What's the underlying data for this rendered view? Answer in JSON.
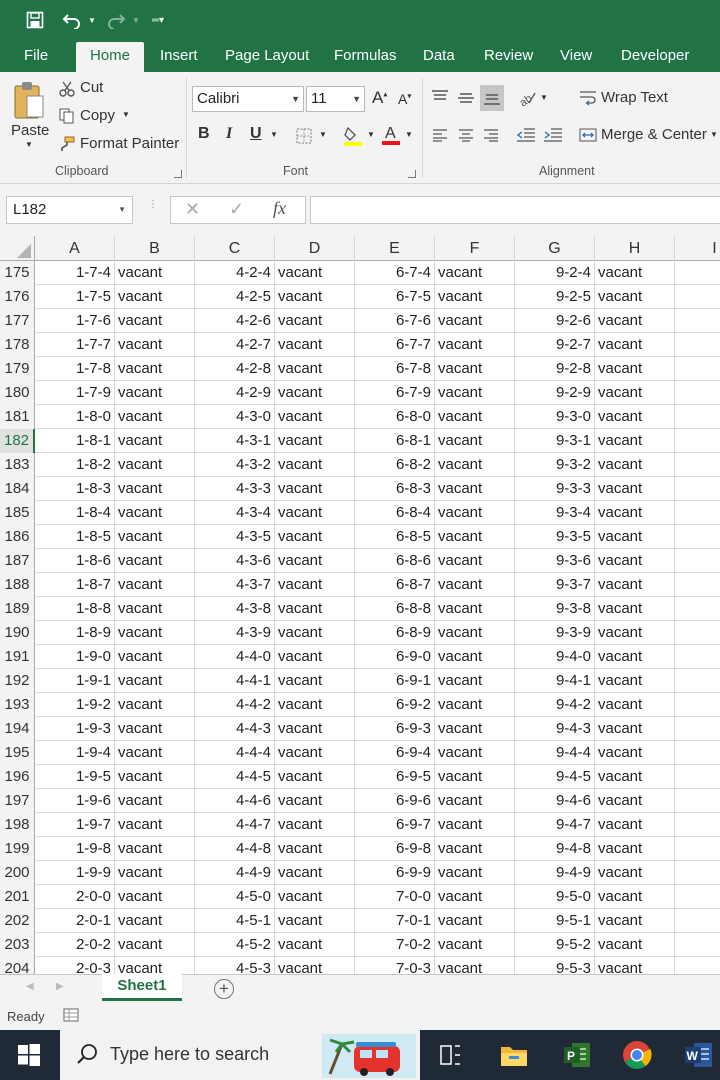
{
  "tabs": [
    "File",
    "Home",
    "Insert",
    "Page Layout",
    "Formulas",
    "Data",
    "Review",
    "View",
    "Developer"
  ],
  "active_tab": "Home",
  "ribbon": {
    "clipboard": {
      "paste": "Paste",
      "cut": "Cut",
      "copy": "Copy",
      "format_painter": "Format Painter",
      "label": "Clipboard"
    },
    "font": {
      "name": "Calibri",
      "size": "11",
      "bold": "B",
      "italic": "I",
      "underline": "U",
      "label": "Font"
    },
    "alignment": {
      "wrap_text": "Wrap Text",
      "merge_center": "Merge & Center",
      "label": "Alignment"
    }
  },
  "formula_bar": {
    "name_box": "L182",
    "fx": "fx",
    "value": ""
  },
  "columns": [
    "A",
    "B",
    "C",
    "D",
    "E",
    "F",
    "G",
    "H",
    "I"
  ],
  "selected_row": "182",
  "rows": [
    {
      "n": "175",
      "a": "1-7-4",
      "b": "vacant",
      "c": "4-2-4",
      "d": "vacant",
      "e": "6-7-4",
      "f": "vacant",
      "g": "9-2-4",
      "h": "vacant"
    },
    {
      "n": "176",
      "a": "1-7-5",
      "b": "vacant",
      "c": "4-2-5",
      "d": "vacant",
      "e": "6-7-5",
      "f": "vacant",
      "g": "9-2-5",
      "h": "vacant"
    },
    {
      "n": "177",
      "a": "1-7-6",
      "b": "vacant",
      "c": "4-2-6",
      "d": "vacant",
      "e": "6-7-6",
      "f": "vacant",
      "g": "9-2-6",
      "h": "vacant"
    },
    {
      "n": "178",
      "a": "1-7-7",
      "b": "vacant",
      "c": "4-2-7",
      "d": "vacant",
      "e": "6-7-7",
      "f": "vacant",
      "g": "9-2-7",
      "h": "vacant"
    },
    {
      "n": "179",
      "a": "1-7-8",
      "b": "vacant",
      "c": "4-2-8",
      "d": "vacant",
      "e": "6-7-8",
      "f": "vacant",
      "g": "9-2-8",
      "h": "vacant"
    },
    {
      "n": "180",
      "a": "1-7-9",
      "b": "vacant",
      "c": "4-2-9",
      "d": "vacant",
      "e": "6-7-9",
      "f": "vacant",
      "g": "9-2-9",
      "h": "vacant"
    },
    {
      "n": "181",
      "a": "1-8-0",
      "b": "vacant",
      "c": "4-3-0",
      "d": "vacant",
      "e": "6-8-0",
      "f": "vacant",
      "g": "9-3-0",
      "h": "vacant"
    },
    {
      "n": "182",
      "a": "1-8-1",
      "b": "vacant",
      "c": "4-3-1",
      "d": "vacant",
      "e": "6-8-1",
      "f": "vacant",
      "g": "9-3-1",
      "h": "vacant"
    },
    {
      "n": "183",
      "a": "1-8-2",
      "b": "vacant",
      "c": "4-3-2",
      "d": "vacant",
      "e": "6-8-2",
      "f": "vacant",
      "g": "9-3-2",
      "h": "vacant"
    },
    {
      "n": "184",
      "a": "1-8-3",
      "b": "vacant",
      "c": "4-3-3",
      "d": "vacant",
      "e": "6-8-3",
      "f": "vacant",
      "g": "9-3-3",
      "h": "vacant"
    },
    {
      "n": "185",
      "a": "1-8-4",
      "b": "vacant",
      "c": "4-3-4",
      "d": "vacant",
      "e": "6-8-4",
      "f": "vacant",
      "g": "9-3-4",
      "h": "vacant"
    },
    {
      "n": "186",
      "a": "1-8-5",
      "b": "vacant",
      "c": "4-3-5",
      "d": "vacant",
      "e": "6-8-5",
      "f": "vacant",
      "g": "9-3-5",
      "h": "vacant"
    },
    {
      "n": "187",
      "a": "1-8-6",
      "b": "vacant",
      "c": "4-3-6",
      "d": "vacant",
      "e": "6-8-6",
      "f": "vacant",
      "g": "9-3-6",
      "h": "vacant"
    },
    {
      "n": "188",
      "a": "1-8-7",
      "b": "vacant",
      "c": "4-3-7",
      "d": "vacant",
      "e": "6-8-7",
      "f": "vacant",
      "g": "9-3-7",
      "h": "vacant"
    },
    {
      "n": "189",
      "a": "1-8-8",
      "b": "vacant",
      "c": "4-3-8",
      "d": "vacant",
      "e": "6-8-8",
      "f": "vacant",
      "g": "9-3-8",
      "h": "vacant"
    },
    {
      "n": "190",
      "a": "1-8-9",
      "b": "vacant",
      "c": "4-3-9",
      "d": "vacant",
      "e": "6-8-9",
      "f": "vacant",
      "g": "9-3-9",
      "h": "vacant"
    },
    {
      "n": "191",
      "a": "1-9-0",
      "b": "vacant",
      "c": "4-4-0",
      "d": "vacant",
      "e": "6-9-0",
      "f": "vacant",
      "g": "9-4-0",
      "h": "vacant"
    },
    {
      "n": "192",
      "a": "1-9-1",
      "b": "vacant",
      "c": "4-4-1",
      "d": "vacant",
      "e": "6-9-1",
      "f": "vacant",
      "g": "9-4-1",
      "h": "vacant"
    },
    {
      "n": "193",
      "a": "1-9-2",
      "b": "vacant",
      "c": "4-4-2",
      "d": "vacant",
      "e": "6-9-2",
      "f": "vacant",
      "g": "9-4-2",
      "h": "vacant"
    },
    {
      "n": "194",
      "a": "1-9-3",
      "b": "vacant",
      "c": "4-4-3",
      "d": "vacant",
      "e": "6-9-3",
      "f": "vacant",
      "g": "9-4-3",
      "h": "vacant"
    },
    {
      "n": "195",
      "a": "1-9-4",
      "b": "vacant",
      "c": "4-4-4",
      "d": "vacant",
      "e": "6-9-4",
      "f": "vacant",
      "g": "9-4-4",
      "h": "vacant"
    },
    {
      "n": "196",
      "a": "1-9-5",
      "b": "vacant",
      "c": "4-4-5",
      "d": "vacant",
      "e": "6-9-5",
      "f": "vacant",
      "g": "9-4-5",
      "h": "vacant"
    },
    {
      "n": "197",
      "a": "1-9-6",
      "b": "vacant",
      "c": "4-4-6",
      "d": "vacant",
      "e": "6-9-6",
      "f": "vacant",
      "g": "9-4-6",
      "h": "vacant"
    },
    {
      "n": "198",
      "a": "1-9-7",
      "b": "vacant",
      "c": "4-4-7",
      "d": "vacant",
      "e": "6-9-7",
      "f": "vacant",
      "g": "9-4-7",
      "h": "vacant"
    },
    {
      "n": "199",
      "a": "1-9-8",
      "b": "vacant",
      "c": "4-4-8",
      "d": "vacant",
      "e": "6-9-8",
      "f": "vacant",
      "g": "9-4-8",
      "h": "vacant"
    },
    {
      "n": "200",
      "a": "1-9-9",
      "b": "vacant",
      "c": "4-4-9",
      "d": "vacant",
      "e": "6-9-9",
      "f": "vacant",
      "g": "9-4-9",
      "h": "vacant"
    },
    {
      "n": "201",
      "a": "2-0-0",
      "b": "vacant",
      "c": "4-5-0",
      "d": "vacant",
      "e": "7-0-0",
      "f": "vacant",
      "g": "9-5-0",
      "h": "vacant"
    },
    {
      "n": "202",
      "a": "2-0-1",
      "b": "vacant",
      "c": "4-5-1",
      "d": "vacant",
      "e": "7-0-1",
      "f": "vacant",
      "g": "9-5-1",
      "h": "vacant"
    },
    {
      "n": "203",
      "a": "2-0-2",
      "b": "vacant",
      "c": "4-5-2",
      "d": "vacant",
      "e": "7-0-2",
      "f": "vacant",
      "g": "9-5-2",
      "h": "vacant"
    },
    {
      "n": "204",
      "a": "2-0-3",
      "b": "vacant",
      "c": "4-5-3",
      "d": "vacant",
      "e": "7-0-3",
      "f": "vacant",
      "g": "9-5-3",
      "h": "vacant"
    }
  ],
  "sheet_tab": "Sheet1",
  "status": "Ready",
  "taskbar": {
    "search_placeholder": "Type here to search"
  },
  "colors": {
    "accent": "#217346",
    "taskbar": "#1f2a36"
  }
}
